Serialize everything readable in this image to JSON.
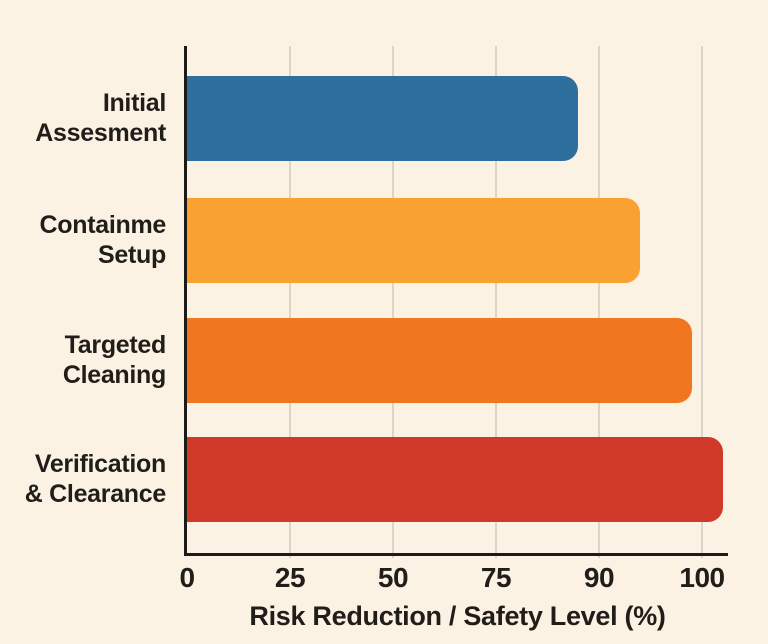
{
  "chart_data": {
    "type": "bar",
    "orientation": "horizontal",
    "title": "",
    "xlabel": "Risk Reduction / Safety Level (%)",
    "ylabel": "",
    "categories": [
      "Initial\nAssesment",
      "Containme\nSetup",
      "Targeted\nCleaning",
      "Verification\n& Clearance"
    ],
    "values": [
      87,
      94,
      99,
      102
    ],
    "bar_colors": [
      "#2f6f9e",
      "#f9a232",
      "#f0771f",
      "#cf3a28"
    ],
    "x_ticks": [
      0,
      25,
      50,
      75,
      90,
      100
    ],
    "grid": "vertical-gridlines-on",
    "legend": "none",
    "colors": {
      "background": "#fbf2e3",
      "axis": "#1d1b18",
      "gridline": "#dcd5c7",
      "text": "#211e1a"
    }
  }
}
